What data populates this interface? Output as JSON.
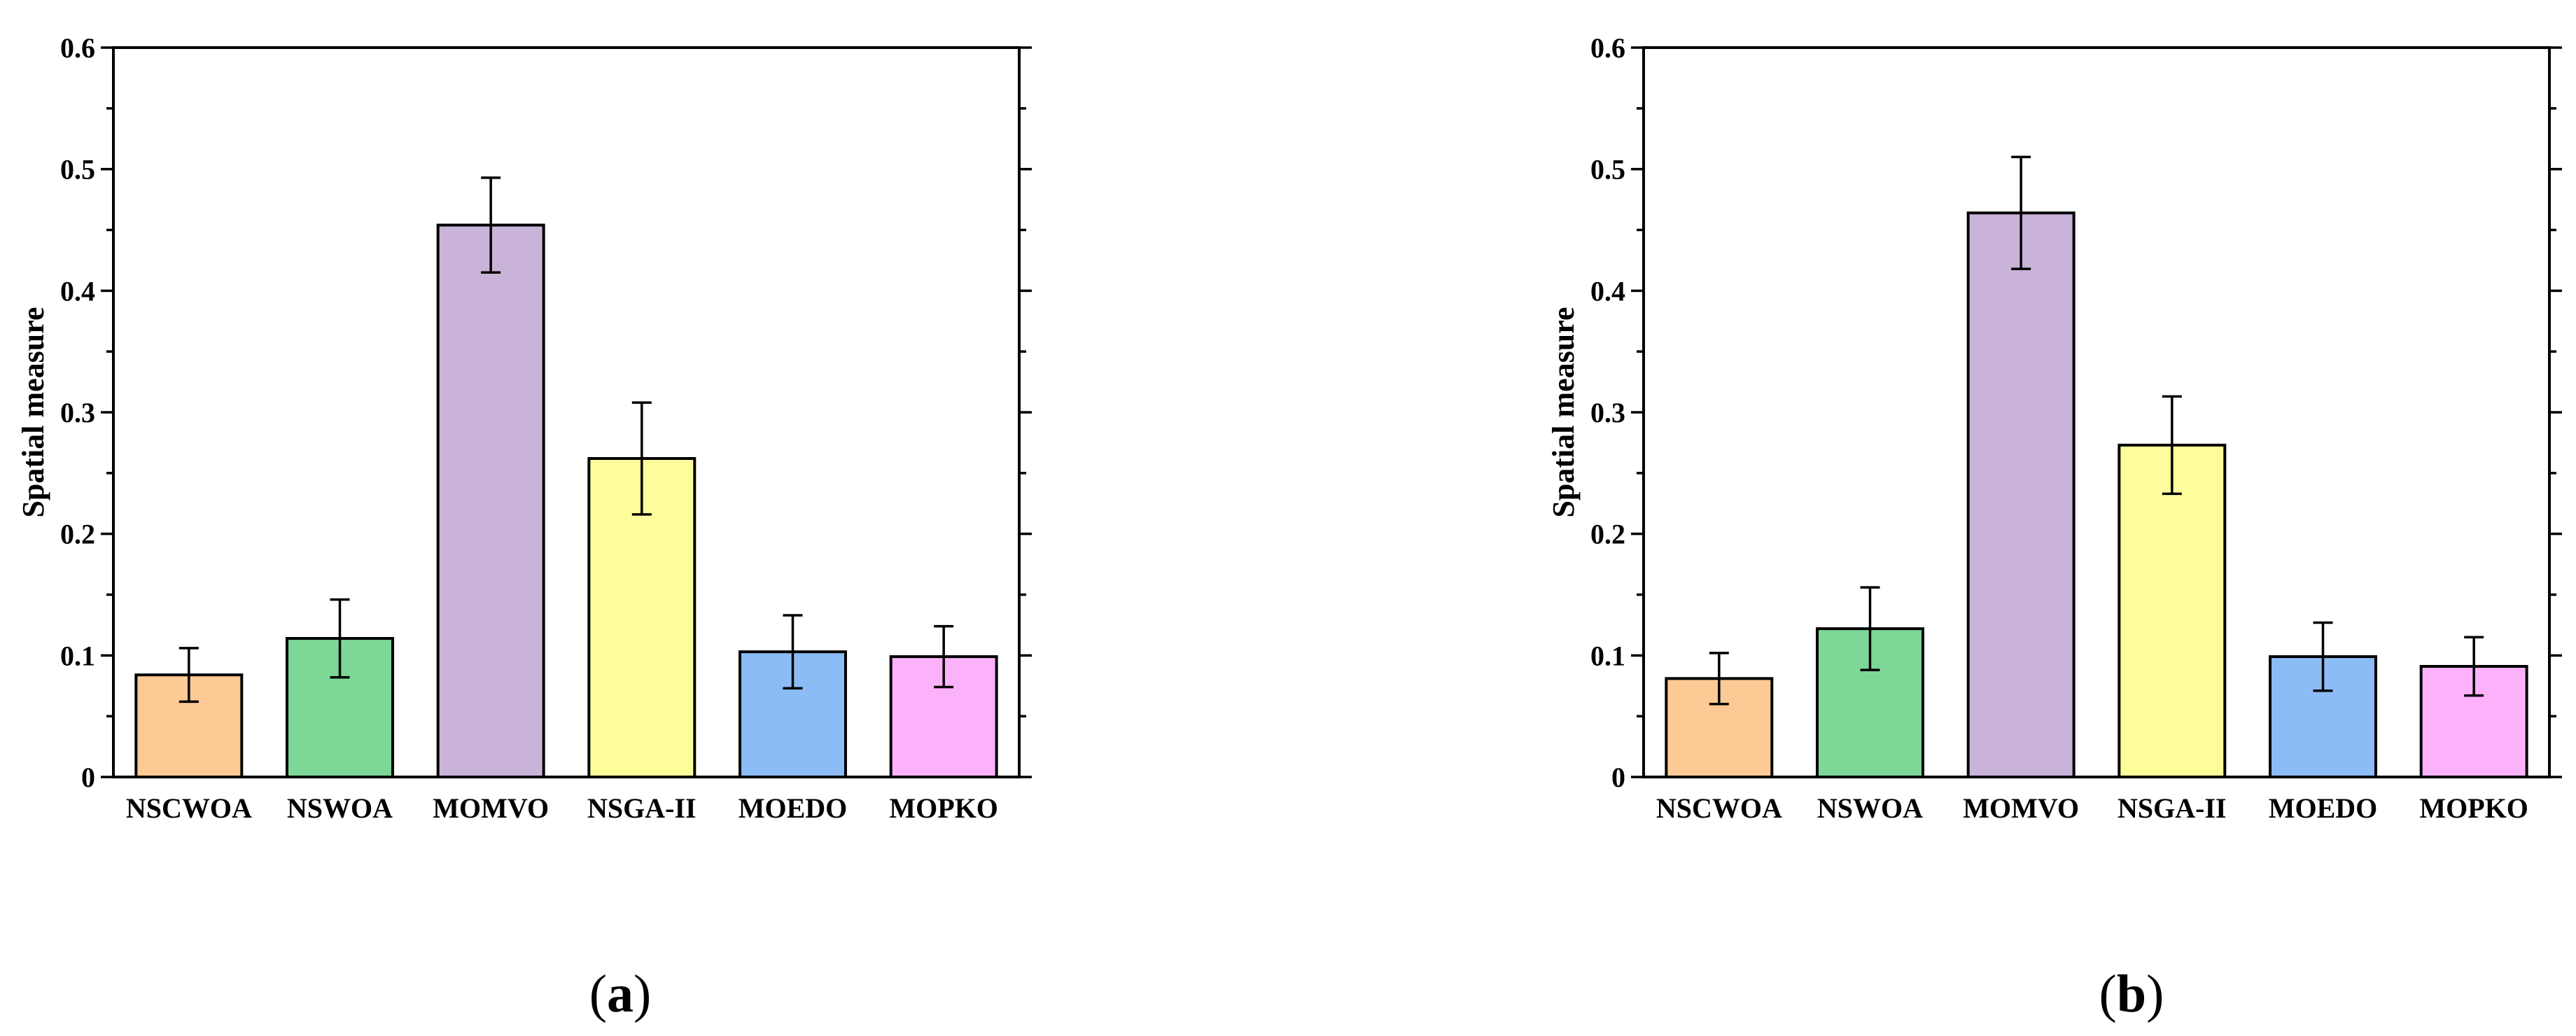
{
  "chart_data": [
    {
      "type": "bar",
      "panel": "a",
      "caption": "(a)",
      "caption_letter": "a",
      "title": "",
      "xlabel": "",
      "ylabel": "Spatial measure",
      "ylim": [
        0,
        0.6
      ],
      "yticks": [
        "0",
        "0.1",
        "0.2",
        "0.3",
        "0.4",
        "0.5",
        "0.6"
      ],
      "categories": [
        "NSCWOA",
        "NSWOA",
        "MOMVO",
        "NSGA-II",
        "MOEDO",
        "MOPKO"
      ],
      "values": [
        0.084,
        0.114,
        0.454,
        0.262,
        0.103,
        0.099
      ],
      "errors": [
        0.022,
        0.032,
        0.039,
        0.046,
        0.03,
        0.025
      ],
      "colors": [
        "#FDC994",
        "#7DD898",
        "#C9B3D8",
        "#FDFD9B",
        "#8BBCF5",
        "#FCB2FA"
      ]
    },
    {
      "type": "bar",
      "panel": "b",
      "caption": "(b)",
      "caption_letter": "b",
      "title": "",
      "xlabel": "",
      "ylabel": "Spatial measure",
      "ylim": [
        0,
        0.6
      ],
      "yticks": [
        "0",
        "0.1",
        "0.2",
        "0.3",
        "0.4",
        "0.5",
        "0.6"
      ],
      "categories": [
        "NSCWOA",
        "NSWOA",
        "MOMVO",
        "NSGA-II",
        "MOEDO",
        "MOPKO"
      ],
      "values": [
        0.081,
        0.122,
        0.464,
        0.273,
        0.099,
        0.091
      ],
      "errors": [
        0.021,
        0.034,
        0.046,
        0.04,
        0.028,
        0.024
      ],
      "colors": [
        "#FDC994",
        "#7DD898",
        "#C9B3D8",
        "#FDFD9B",
        "#8BBCF5",
        "#FCB2FA"
      ]
    }
  ]
}
